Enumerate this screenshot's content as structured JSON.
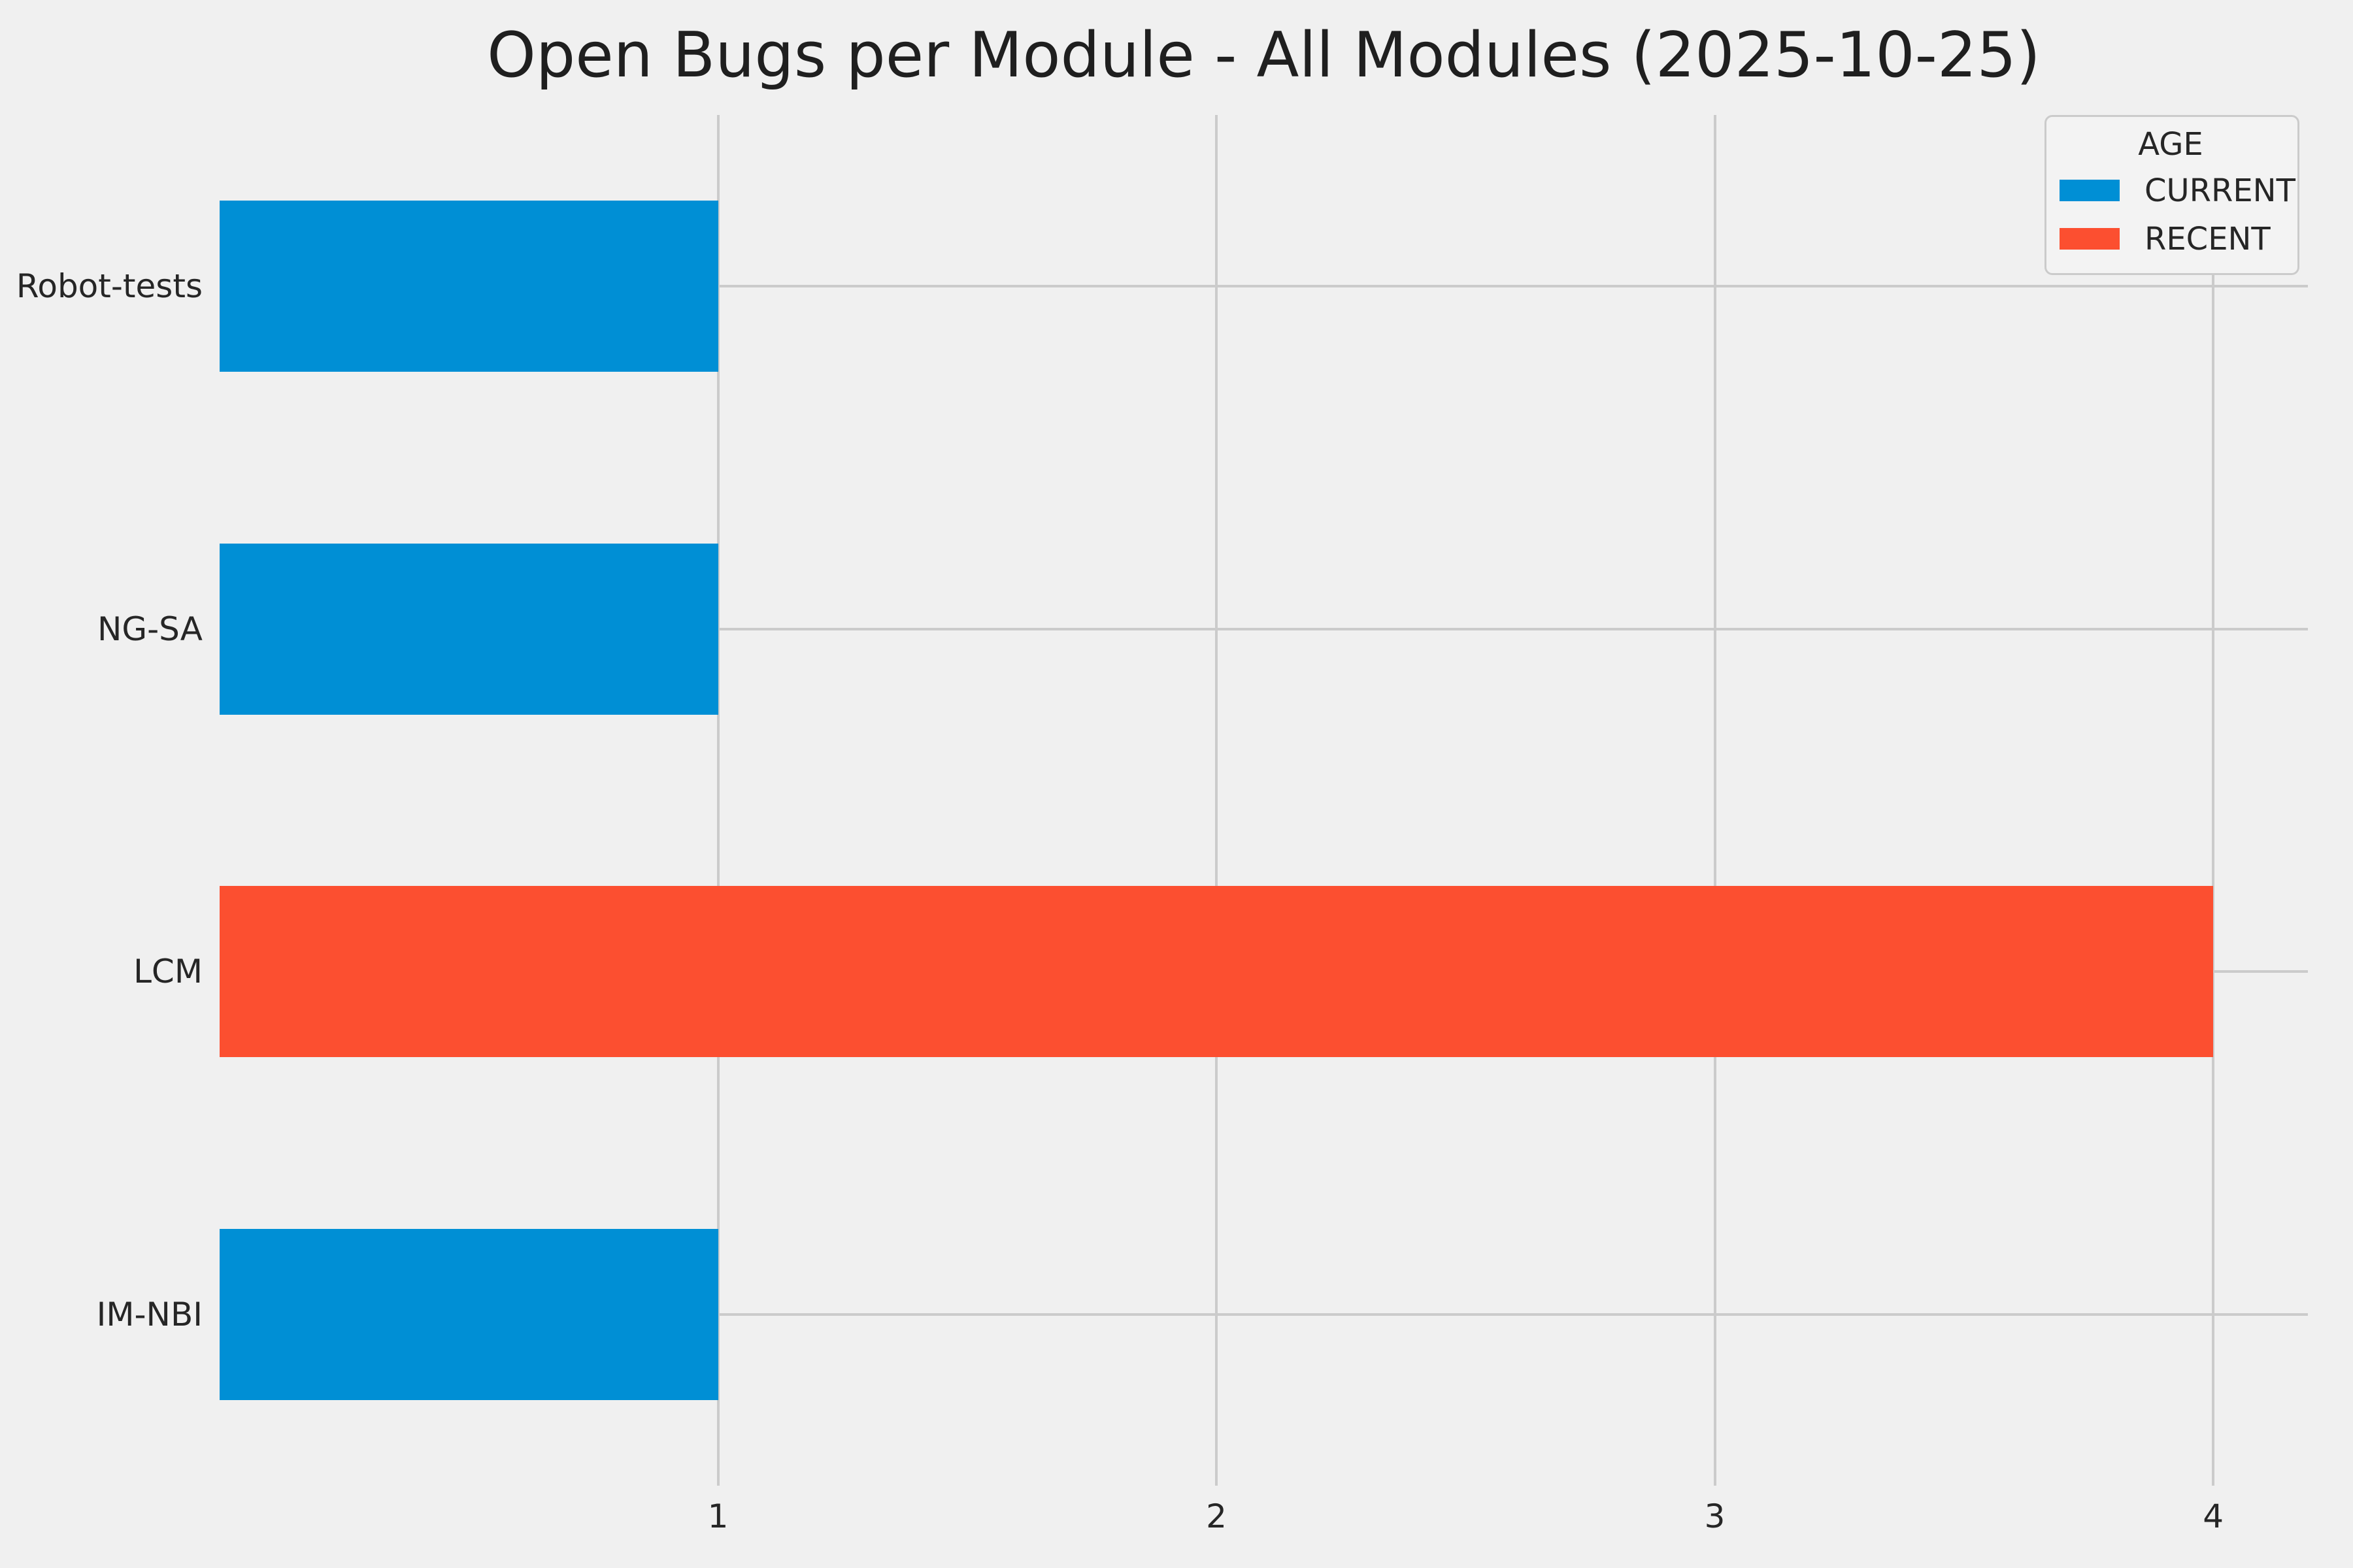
{
  "figure": {
    "background_color": "#f0f0f0",
    "grid_color": "#cbcbcb",
    "text_color": "#262626"
  },
  "chart_data": {
    "type": "bar",
    "orientation": "horizontal",
    "title": "Open Bugs per Module - All Modules (2025-10-25)",
    "categories": [
      "Robot-tests",
      "NG-SA",
      "LCM",
      "IM-NBI"
    ],
    "values": [
      1,
      1,
      4,
      1
    ],
    "groups": [
      "CURRENT",
      "CURRENT",
      "RECENT",
      "CURRENT"
    ],
    "colors": {
      "CURRENT": "#008fd5",
      "RECENT": "#fc4f30"
    },
    "xlabel": "",
    "ylabel": "",
    "xlim": [
      0,
      4.19
    ],
    "xticks": [
      "1",
      "2",
      "3",
      "4"
    ],
    "xtick_values": [
      1,
      2,
      3,
      4
    ],
    "grid": "both",
    "legend": {
      "title": "AGE",
      "position": "upper-right",
      "entries": [
        {
          "label": "CURRENT",
          "color": "#008fd5"
        },
        {
          "label": "RECENT",
          "color": "#fc4f30"
        }
      ]
    }
  }
}
